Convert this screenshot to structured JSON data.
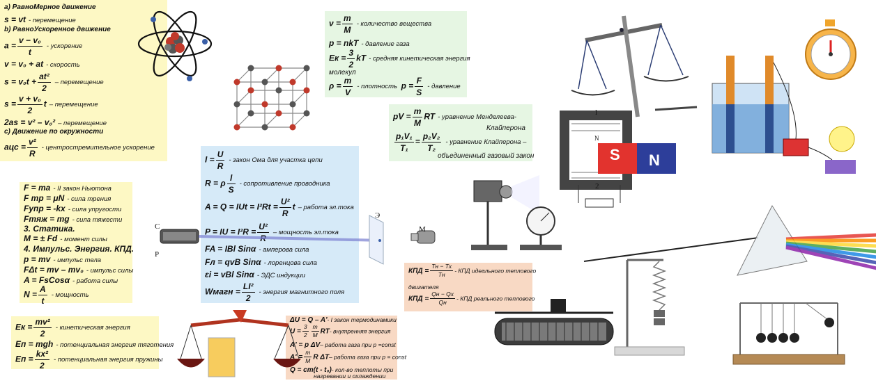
{
  "kinematics": {
    "uniform_title": "а) РавноМерное движение",
    "s_vt": "s = vt",
    "s_vt_note": "- перемещение",
    "accel_title": "b) РавноУскоренное движение",
    "a_lhs": "a =",
    "a_num": "v − v₀",
    "a_den": "t",
    "a_note": "- ускорение",
    "v_eq": "v = v₀ + at",
    "v_note": "- скорость",
    "s2_lhs": "s = v₀t +",
    "s2_num": "at²",
    "s2_den": "2",
    "s2_note": "– перемещение",
    "s3_lhs": "s =",
    "s3_num": "v + v₀",
    "s3_den": "2",
    "s3_rhs": "t",
    "s3_note": "– перемещение",
    "s4_eq": "2as = v² – v₀²",
    "s4_note": "– перемещение",
    "circle_title": "с) Движение по окружности",
    "ac_lhs": "aцс =",
    "ac_num": "v²",
    "ac_den": "R",
    "ac_note": "- центростремительное ускорение"
  },
  "molecular": {
    "nu_lhs": "ν =",
    "nu_num": "m",
    "nu_den": "M",
    "nu_note": "- количество вещества",
    "p_eq": "p = nkT",
    "p_note": "- давление газа",
    "ek_lhs": "Eк =",
    "ek_num": "3",
    "ek_den": "2",
    "ek_rhs": "kT",
    "ek_note": "- средняя кинетическая энергия",
    "ek_note2": "молекул",
    "rho_lhs": "ρ =",
    "rho_num": "m",
    "rho_den": "V",
    "rho_note": "- плотность",
    "pr_lhs": "p =",
    "pr_num": "F",
    "pr_den": "S",
    "pr_note": "- давление"
  },
  "gas_laws": {
    "mk_lhs": "pV =",
    "mk_num": "m",
    "mk_den": "M",
    "mk_rhs": "RT",
    "mk_note": "- уравнение Менделеева-",
    "mk_note2": "Клайперона",
    "cl_num1": "p₁V₁",
    "cl_den1": "T₁",
    "cl_eq": "=",
    "cl_num2": "p₂V₂",
    "cl_den2": "T₂",
    "cl_note": "- уравнение Клайперона –",
    "cl_note2": "объединенный газовый закон"
  },
  "electricity": {
    "ohm_lhs": "I =",
    "ohm_num": "U",
    "ohm_den": "R",
    "ohm_note": "- закон Ома для участка цепи",
    "r_lhs": "R = ρ",
    "r_num": "l",
    "r_den": "S",
    "r_note": "- сопротивление проводника",
    "work_lhs": "A = Q = IUt = I²Rt =",
    "work_num": "U²",
    "work_den": "R",
    "work_rhs": "t",
    "work_note": "– работа эл.тока",
    "power_lhs": "P = IU = I²R =",
    "power_num": "U²",
    "power_den": "R",
    "power_note": "– мощность эл.тока",
    "ampere_eq": "FA = IBl Sinα",
    "ampere_note": "- амперова сила",
    "lorentz_eq": "Fл = qvB Sinα",
    "lorentz_note": "- лоренцова сила",
    "emf_eq": "εi = vBl Sinα",
    "emf_note": "- ЭДС индукции",
    "wm_lhs": "Wмагн =",
    "wm_num": "LI²",
    "wm_den": "2",
    "wm_note": "- энергия магнитного поля"
  },
  "dynamics": {
    "newton2": "F = ma",
    "newton2_note": "- II закон Ньютона",
    "friction": "F тр = μN",
    "friction_note": "- сила трения",
    "elastic": "Fупр = -kx",
    "elastic_note": "- сила упругости",
    "gravity": "Fтяж = mg",
    "gravity_note": "- сила тяжести",
    "statics_title": "3. Статика.",
    "moment": "M = ± Fd",
    "moment_note": "- момент силы",
    "impulse_title": "4. Импульс. Энергия. КПД.",
    "momentum": "p = mv",
    "momentum_note": "- импульс тела",
    "impulse": "FΔt = mv – mv₀",
    "impulse_note": "- импульс силы",
    "work": "A = FsCosα",
    "work_note": "- работа силы",
    "power_lhs": "N =",
    "power_num": "A",
    "power_den": "t",
    "power_note": "- мощность"
  },
  "energy": {
    "ek_lhs": "Eк =",
    "ek_num": "mv²",
    "ek_den": "2",
    "ek_note": "- кинетическая энергия",
    "ep_eq": "Eп = mgh",
    "ep_note": "- потенциальная энергия тяготения",
    "es_lhs": "Eп =",
    "es_num": "kx²",
    "es_den": "2",
    "es_note": "- потенциальная энергия пружины"
  },
  "efficiency": {
    "ideal_lhs": "КПД =",
    "ideal_num": "Tн − Tх",
    "ideal_den": "Tн",
    "ideal_note": "- КПД идеального теплового",
    "ideal_note2": "двигателя",
    "real_lhs": "КПД =",
    "real_num": "Qн − Qх",
    "real_den": "Qн",
    "real_note": "- КПД реального теплового"
  },
  "thermo": {
    "first_law": "ΔU = Q – A'",
    "first_law_note": "- I закон термодинамики",
    "u_lhs": "U =",
    "u_num1": "3",
    "u_den1": "2",
    "u_num2": "m",
    "u_den2": "M",
    "u_rhs": "RT",
    "u_note": "- внутренняя энергия",
    "a1_eq": "A' = p ΔV",
    "a1_note": "– работа газа при p =const",
    "a2_lhs": "A' =",
    "a2_num": "m",
    "a2_den": "M",
    "a2_rhs": "R ΔT",
    "a2_note": "– работа газа при p = const",
    "q_eq": "Q = cm(t - t₀)",
    "q_note": "- кол-во теплоты при",
    "q_note2": "нагревании и охлаждении"
  },
  "labels": {
    "tube_c": "С",
    "tube_p": "Р",
    "screen_e": "Э",
    "magnet_m": "М",
    "coil_l": "l",
    "coil_2": "2",
    "magnet_s": "S",
    "magnet_n": "N",
    "coil_n": "N"
  }
}
